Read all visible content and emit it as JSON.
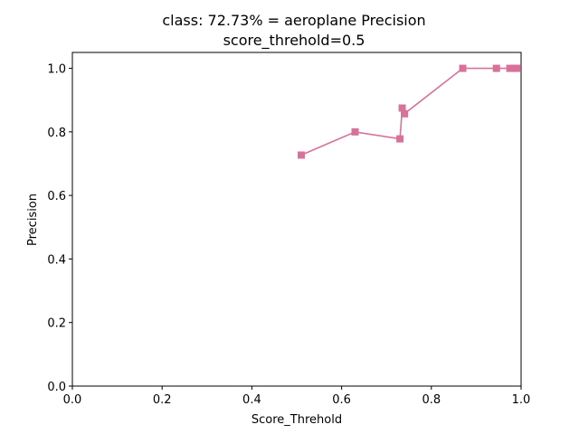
{
  "chart_data": {
    "type": "line",
    "title": "class: 72.73% = aeroplane Precision",
    "subtitle": "score_threhold=0.5",
    "xlabel": "Score_Threhold",
    "ylabel": "Precision",
    "xlim": [
      0.0,
      1.0
    ],
    "ylim": [
      0.0,
      1.05
    ],
    "xticks": [
      "0.0",
      "0.2",
      "0.4",
      "0.6",
      "0.8",
      "1.0"
    ],
    "yticks": [
      "0.0",
      "0.2",
      "0.4",
      "0.6",
      "0.8",
      "1.0"
    ],
    "grid": false,
    "marker": "square",
    "color": "#d8729a",
    "series": [
      {
        "x": [
          0.51,
          0.63,
          0.73,
          0.735,
          0.74,
          0.87,
          0.945,
          0.975,
          0.985,
          0.99
        ],
        "y": [
          0.727,
          0.8,
          0.778,
          0.875,
          0.857,
          1.0,
          1.0,
          1.0,
          1.0,
          1.0
        ]
      }
    ]
  }
}
